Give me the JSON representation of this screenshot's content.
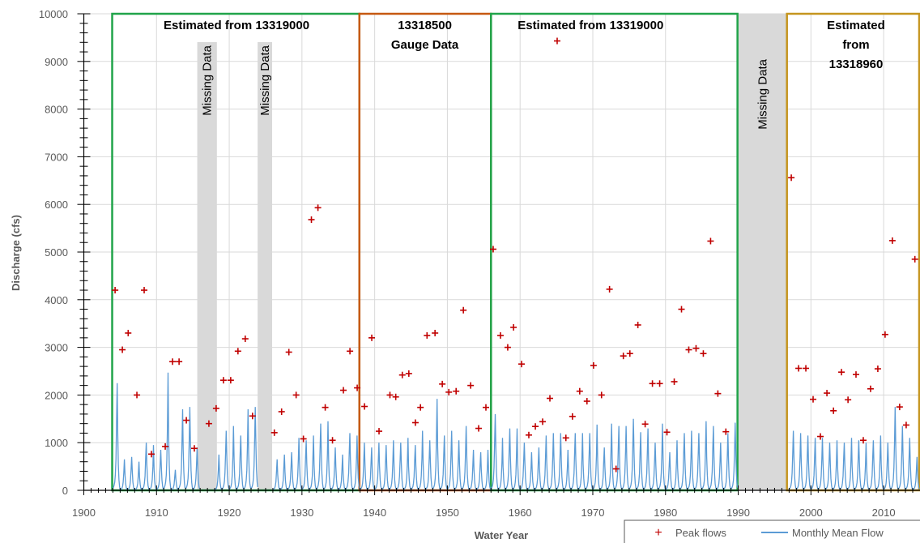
{
  "chart_data": {
    "type": "line",
    "xlabel": "Water Year",
    "ylabel": "Discharge (cfs)",
    "xlim": [
      1900,
      2015
    ],
    "ylim": [
      0,
      10000
    ],
    "x_ticks": [
      "1900",
      "1910",
      "1920",
      "1930",
      "1940",
      "1950",
      "1960",
      "1970",
      "1980",
      "1990",
      "2000",
      "2010"
    ],
    "y_ticks": [
      "0",
      "1000",
      "2000",
      "3000",
      "4000",
      "5000",
      "6000",
      "7000",
      "8000",
      "9000",
      "10000"
    ],
    "regions": [
      {
        "label": "Estimated from 13319000",
        "x_start": 1903.9,
        "x_end": 1937.9,
        "color": "#21a44a"
      },
      {
        "label": "13318500 Gauge Data",
        "x_start": 1937.9,
        "x_end": 1956.0,
        "color": "#c65911"
      },
      {
        "label": "Estimated from 13319000",
        "x_start": 1956.0,
        "x_end": 1989.9,
        "color": "#21a44a"
      },
      {
        "label": "Estimated from 13318960",
        "x_start": 1996.7,
        "x_end": 2015,
        "color": "#c5951f"
      }
    ],
    "missing": [
      {
        "label": "Missing Data",
        "x_start": 1915.6,
        "x_end": 1918.3
      },
      {
        "label": "Missing Data",
        "x_start": 1923.9,
        "x_end": 1925.9
      },
      {
        "label": "Missing Data",
        "x_start": 1990.0,
        "x_end": 1996.7
      }
    ],
    "series": [
      {
        "name": "Peak flows",
        "color": "#c00000",
        "points": [
          [
            1904.3,
            4200
          ],
          [
            1905.3,
            2950
          ],
          [
            1906.1,
            3300
          ],
          [
            1907.3,
            2000
          ],
          [
            1908.3,
            4200
          ],
          [
            1909.3,
            760
          ],
          [
            1911.2,
            920
          ],
          [
            1912.2,
            2700
          ],
          [
            1913.1,
            2700
          ],
          [
            1914.1,
            1470
          ],
          [
            1915.2,
            880
          ],
          [
            1917.2,
            1400
          ],
          [
            1918.2,
            1720
          ],
          [
            1919.2,
            2310
          ],
          [
            1920.2,
            2310
          ],
          [
            1921.2,
            2920
          ],
          [
            1922.2,
            3180
          ],
          [
            1923.2,
            1560
          ],
          [
            1926.2,
            1210
          ],
          [
            1927.2,
            1650
          ],
          [
            1928.2,
            2900
          ],
          [
            1929.2,
            2000
          ],
          [
            1930.2,
            1080
          ],
          [
            1931.3,
            5680
          ],
          [
            1932.2,
            5930
          ],
          [
            1933.2,
            1740
          ],
          [
            1934.2,
            1050
          ],
          [
            1935.7,
            2100
          ],
          [
            1936.6,
            2920
          ],
          [
            1937.6,
            2150
          ],
          [
            1938.6,
            1760
          ],
          [
            1939.6,
            3200
          ],
          [
            1940.6,
            1240
          ],
          [
            1942.1,
            2000
          ],
          [
            1942.9,
            1960
          ],
          [
            1943.8,
            2420
          ],
          [
            1944.7,
            2450
          ],
          [
            1945.6,
            1420
          ],
          [
            1946.3,
            1740
          ],
          [
            1947.2,
            3250
          ],
          [
            1948.3,
            3300
          ],
          [
            1949.3,
            2230
          ],
          [
            1950.2,
            2060
          ],
          [
            1951.2,
            2080
          ],
          [
            1952.2,
            3780
          ],
          [
            1953.2,
            2200
          ],
          [
            1954.3,
            1300
          ],
          [
            1955.3,
            1740
          ],
          [
            1956.3,
            5060
          ],
          [
            1957.3,
            3250
          ],
          [
            1958.3,
            3000
          ],
          [
            1959.1,
            3420
          ],
          [
            1960.2,
            2650
          ],
          [
            1961.2,
            1160
          ],
          [
            1962.1,
            1340
          ],
          [
            1963.1,
            1440
          ],
          [
            1964.1,
            1930
          ],
          [
            1965.1,
            9430
          ],
          [
            1966.3,
            1100
          ],
          [
            1967.2,
            1550
          ],
          [
            1968.2,
            2080
          ],
          [
            1969.2,
            1870
          ],
          [
            1970.1,
            2620
          ],
          [
            1971.2,
            2000
          ],
          [
            1972.3,
            4220
          ],
          [
            1973.2,
            450
          ],
          [
            1974.2,
            2820
          ],
          [
            1975.1,
            2870
          ],
          [
            1976.2,
            3470
          ],
          [
            1977.2,
            1390
          ],
          [
            1978.2,
            2240
          ],
          [
            1979.2,
            2240
          ],
          [
            1980.2,
            1220
          ],
          [
            1981.2,
            2280
          ],
          [
            1982.2,
            3800
          ],
          [
            1983.2,
            2950
          ],
          [
            1984.2,
            2980
          ],
          [
            1985.2,
            2870
          ],
          [
            1986.2,
            5230
          ],
          [
            1987.2,
            2030
          ],
          [
            1988.3,
            1230
          ],
          [
            1997.3,
            6560
          ],
          [
            1998.3,
            2560
          ],
          [
            1999.3,
            2560
          ],
          [
            2000.3,
            1910
          ],
          [
            2001.3,
            1130
          ],
          [
            2002.2,
            2040
          ],
          [
            2003.1,
            1670
          ],
          [
            2004.2,
            2480
          ],
          [
            2005.1,
            1900
          ],
          [
            2006.2,
            2430
          ],
          [
            2007.2,
            1050
          ],
          [
            2008.2,
            2130
          ],
          [
            2009.2,
            2550
          ],
          [
            2010.2,
            3270
          ],
          [
            2011.2,
            5240
          ],
          [
            2012.2,
            1750
          ],
          [
            2013.1,
            1370
          ],
          [
            2014.3,
            4850
          ]
        ]
      },
      {
        "name": "Monthly Mean Flow",
        "color": "#5b9bd5",
        "annual_peaks": [
          [
            1904,
            2250
          ],
          [
            1905,
            650
          ],
          [
            1906,
            700
          ],
          [
            1907,
            600
          ],
          [
            1908,
            1000
          ],
          [
            1909,
            950
          ],
          [
            1910,
            850
          ],
          [
            1911,
            2470
          ],
          [
            1912,
            430
          ],
          [
            1913,
            1700
          ],
          [
            1914,
            1750
          ],
          [
            1915,
            900
          ],
          [
            1918,
            750
          ],
          [
            1919,
            1250
          ],
          [
            1920,
            1350
          ],
          [
            1921,
            1150
          ],
          [
            1922,
            1700
          ],
          [
            1923,
            1750
          ],
          [
            1926,
            650
          ],
          [
            1927,
            750
          ],
          [
            1928,
            800
          ],
          [
            1929,
            1100
          ],
          [
            1930,
            1050
          ],
          [
            1931,
            1150
          ],
          [
            1932,
            1400
          ],
          [
            1933,
            1450
          ],
          [
            1934,
            900
          ],
          [
            1935,
            750
          ],
          [
            1936,
            1200
          ],
          [
            1937,
            1150
          ],
          [
            1938,
            1000
          ],
          [
            1939,
            900
          ],
          [
            1940,
            1000
          ],
          [
            1941,
            950
          ],
          [
            1942,
            1050
          ],
          [
            1943,
            1000
          ],
          [
            1944,
            1100
          ],
          [
            1945,
            950
          ],
          [
            1946,
            1250
          ],
          [
            1947,
            1050
          ],
          [
            1948,
            1920
          ],
          [
            1949,
            1150
          ],
          [
            1950,
            1250
          ],
          [
            1951,
            1050
          ],
          [
            1952,
            1350
          ],
          [
            1953,
            850
          ],
          [
            1954,
            800
          ],
          [
            1955,
            850
          ],
          [
            1956,
            1600
          ],
          [
            1957,
            1100
          ],
          [
            1958,
            1300
          ],
          [
            1959,
            1300
          ],
          [
            1960,
            1000
          ],
          [
            1961,
            800
          ],
          [
            1962,
            900
          ],
          [
            1963,
            1150
          ],
          [
            1964,
            1200
          ],
          [
            1965,
            1200
          ],
          [
            1966,
            850
          ],
          [
            1967,
            1200
          ],
          [
            1968,
            1200
          ],
          [
            1969,
            1200
          ],
          [
            1970,
            1380
          ],
          [
            1971,
            900
          ],
          [
            1972,
            1400
          ],
          [
            1973,
            1350
          ],
          [
            1974,
            1350
          ],
          [
            1975,
            1500
          ],
          [
            1976,
            1220
          ],
          [
            1977,
            1300
          ],
          [
            1978,
            1000
          ],
          [
            1979,
            1400
          ],
          [
            1980,
            800
          ],
          [
            1981,
            1050
          ],
          [
            1982,
            1200
          ],
          [
            1983,
            1250
          ],
          [
            1984,
            1200
          ],
          [
            1985,
            1450
          ],
          [
            1986,
            1350
          ],
          [
            1987,
            1000
          ],
          [
            1988,
            1200
          ],
          [
            1989,
            1420
          ],
          [
            1997,
            1250
          ],
          [
            1998,
            1200
          ],
          [
            1999,
            1150
          ],
          [
            2000,
            1100
          ],
          [
            2001,
            1100
          ],
          [
            2002,
            1000
          ],
          [
            2003,
            1050
          ],
          [
            2004,
            1000
          ],
          [
            2005,
            1100
          ],
          [
            2006,
            1050
          ],
          [
            2007,
            1000
          ],
          [
            2008,
            1050
          ],
          [
            2009,
            1150
          ],
          [
            2010,
            1000
          ],
          [
            2011,
            1750
          ],
          [
            2012,
            1350
          ],
          [
            2013,
            1100
          ],
          [
            2014,
            700
          ]
        ]
      }
    ],
    "legend": {
      "position": "bottom-right",
      "peak_label": "Peak flows",
      "mean_label": "Monthly Mean Flow"
    }
  }
}
